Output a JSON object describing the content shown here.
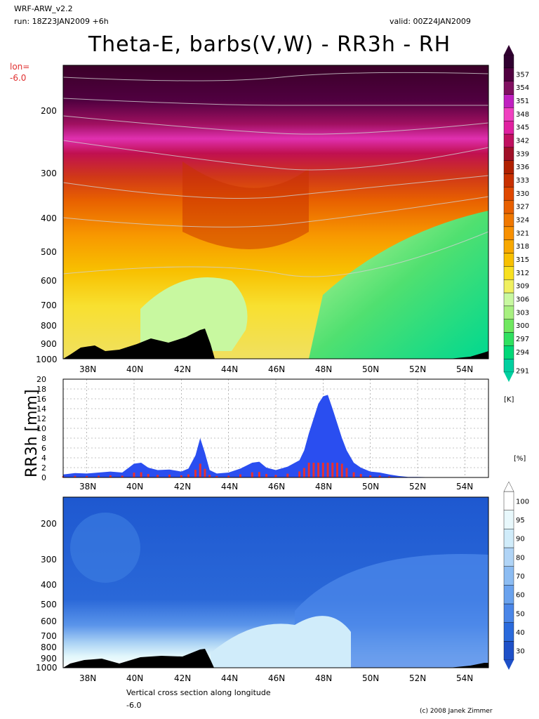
{
  "header": {
    "model": "WRF-ARW_v2.2",
    "run": "run: 18Z23JAN2009 +6h",
    "valid": "valid: 00Z24JAN2009",
    "title": "Theta-E, barbs(V,W) - RR3h - RH",
    "lon_label": "lon=",
    "lon_value": "-6.0"
  },
  "footer": {
    "caption": "Vertical cross section along longitude",
    "caption_value": "-6.0",
    "copyright": "(c) 2008 Janek Zimmer"
  },
  "units": {
    "thetae": "[K]",
    "rh": "[%]"
  },
  "chart_data": [
    {
      "type": "heatmap",
      "name": "Theta-E cross section",
      "xlim": [
        "37N",
        "55N"
      ],
      "x_ticks": [
        "38N",
        "40N",
        "42N",
        "44N",
        "46N",
        "48N",
        "50N",
        "52N",
        "54N"
      ],
      "y_ticks": [
        "200",
        "300",
        "400",
        "500",
        "600",
        "700",
        "800",
        "900",
        "1000"
      ],
      "colorbar_levels": [
        291,
        294,
        297,
        300,
        303,
        306,
        309,
        312,
        315,
        318,
        321,
        324,
        327,
        330,
        333,
        336,
        339,
        342,
        345,
        348,
        351,
        354,
        357
      ],
      "colorbar_colors": [
        "#00d0a0",
        "#00d878",
        "#30e060",
        "#70e860",
        "#a8f080",
        "#c8f8a0",
        "#f0f060",
        "#f8e020",
        "#f8c000",
        "#f8a800",
        "#f89000",
        "#f07800",
        "#e86000",
        "#e04800",
        "#c83000",
        "#b02000",
        "#a01028",
        "#c01060",
        "#e020a0",
        "#f040c0",
        "#c020c0",
        "#801060",
        "#500040",
        "#300030"
      ]
    },
    {
      "type": "bar",
      "name": "RR3h",
      "ylabel": "RR3h [mm]",
      "ylim": [
        0,
        20
      ],
      "y_ticks": [
        "0",
        "2",
        "4",
        "6",
        "8",
        "10",
        "12",
        "14",
        "16",
        "18",
        "20"
      ],
      "x_ticks": [
        "38N",
        "40N",
        "42N",
        "44N",
        "46N",
        "48N",
        "50N",
        "52N",
        "54N"
      ],
      "x": [
        37.0,
        37.5,
        38.0,
        38.5,
        39.0,
        39.5,
        40.0,
        40.3,
        40.6,
        41.0,
        41.5,
        42.0,
        42.3,
        42.6,
        42.8,
        43.0,
        43.2,
        43.5,
        44.0,
        44.5,
        45.0,
        45.3,
        45.6,
        46.0,
        46.5,
        47.0,
        47.2,
        47.4,
        47.6,
        47.8,
        48.0,
        48.2,
        48.4,
        48.6,
        48.8,
        49.0,
        49.3,
        49.6,
        50.0,
        50.4,
        50.8,
        51.2,
        51.6,
        52.0,
        53.0,
        54.0,
        55.0
      ],
      "values": [
        0.6,
        0.9,
        0.8,
        1.0,
        1.2,
        1.0,
        2.8,
        3.0,
        2.0,
        1.5,
        1.6,
        1.2,
        1.8,
        4.5,
        8.0,
        5.0,
        1.5,
        0.8,
        1.0,
        1.8,
        3.0,
        3.2,
        2.0,
        1.5,
        2.2,
        3.5,
        5.5,
        9.0,
        12.0,
        15.0,
        16.5,
        16.8,
        14.0,
        11.0,
        8.0,
        5.5,
        3.0,
        2.0,
        1.2,
        1.0,
        0.6,
        0.3,
        0.1,
        0.1,
        0.0,
        0.0,
        0.0
      ]
    },
    {
      "type": "heatmap",
      "name": "RH cross section",
      "x_ticks": [
        "38N",
        "40N",
        "42N",
        "44N",
        "46N",
        "48N",
        "50N",
        "52N",
        "54N"
      ],
      "y_ticks": [
        "200",
        "300",
        "400",
        "500",
        "600",
        "700",
        "800",
        "900",
        "1000"
      ],
      "colorbar_levels": [
        30,
        40,
        50,
        60,
        70,
        80,
        90,
        95,
        100
      ],
      "colorbar_colors": [
        "#1e50c8",
        "#2a6adc",
        "#4a86e8",
        "#6aa2ee",
        "#8cbcf2",
        "#b0d4f6",
        "#d0ecfa",
        "#e8f8fc",
        "#ffffff"
      ]
    }
  ]
}
